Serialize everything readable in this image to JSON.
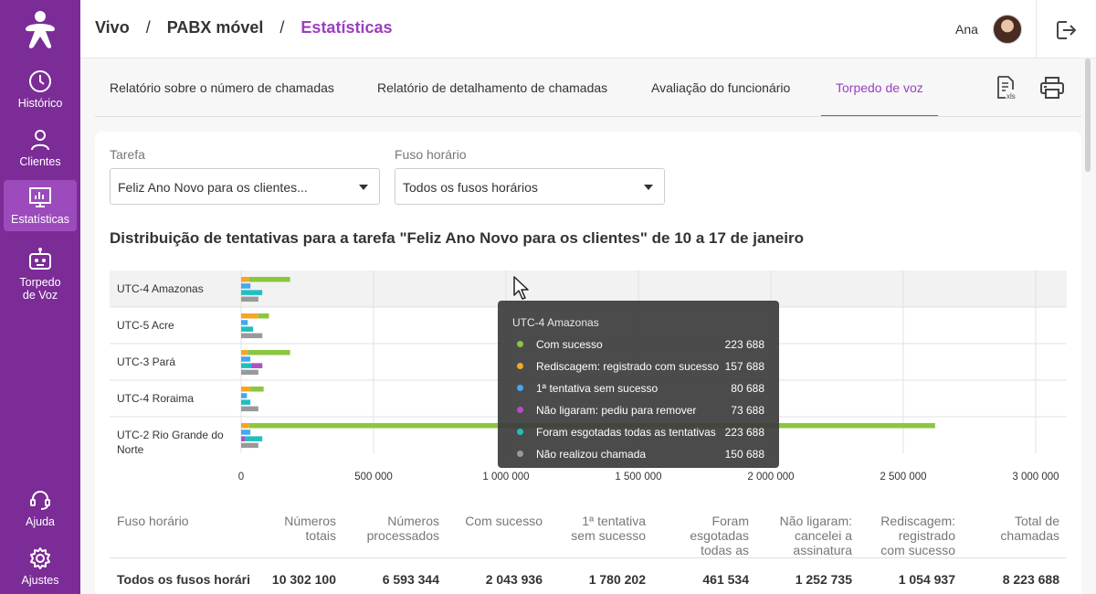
{
  "sidebar": {
    "logo": "vivo-logo-icon",
    "items": [
      {
        "label": "Histórico",
        "icon": "clock-icon",
        "active": false
      },
      {
        "label": "Clientes",
        "icon": "user-icon",
        "active": false
      },
      {
        "label": "Estatísticas",
        "icon": "chart-icon",
        "active": true
      },
      {
        "label": "Torpedo\nde Voz",
        "label_line1": "Torpedo",
        "label_line2": "de Voz",
        "icon": "robot-icon",
        "active": false
      }
    ],
    "bottom_items": [
      {
        "label": "Ajuda",
        "icon": "headset-icon"
      },
      {
        "label": "Ajustes",
        "icon": "gear-icon"
      }
    ]
  },
  "header": {
    "breadcrumb": [
      "Vivo",
      "PABX móvel",
      "Estatísticas"
    ],
    "separator": "/",
    "user_name": "Ana"
  },
  "tabs": [
    {
      "label": "Relatório sobre o número de chamadas",
      "active": false
    },
    {
      "label": "Relatório de detalhamento de chamadas",
      "active": false
    },
    {
      "label": "Avaliação do funcionário",
      "active": false
    },
    {
      "label": "Torpedo de voz",
      "active": true
    }
  ],
  "filters": {
    "task_label": "Tarefa",
    "task_value": "Feliz Ano Novo para os clientes...",
    "tz_label": "Fuso horário",
    "tz_value": "Todos os fusos horários"
  },
  "section_title": "Distribuição de tentativas para a tarefa \"Feliz Ano Novo para os clientes\" de 10 a 17 de janeiro",
  "colors": {
    "success": "#8cc63f",
    "redial": "#f5a623",
    "first_fail": "#3fa9f5",
    "removed": "#b24fc8",
    "exhausted": "#1fbfbf",
    "not_called": "#999999",
    "accent": "#9b3fc0",
    "sidebar": "#7b2c96"
  },
  "chart_data": {
    "type": "bar",
    "orientation": "horizontal",
    "categories": [
      "UTC-4 Amazonas",
      "UTC-5 Acre",
      "UTC-3 Pará",
      "UTC-4 Roraima",
      "UTC-2 Rio Grande do Norte"
    ],
    "xlim": [
      0,
      3000000
    ],
    "xticks": [
      0,
      500000,
      1000000,
      1500000,
      2000000,
      2500000,
      3000000
    ],
    "xtick_labels": [
      "0",
      "500 000",
      "1 000 000",
      "1 500 000",
      "2 000 000",
      "2 500 000",
      "3 000 000"
    ],
    "grid": true,
    "series": [
      {
        "key": "success",
        "values": [
          185000,
          105000,
          185000,
          35000,
          2620000
        ]
      },
      {
        "key": "redial",
        "values": [
          30000,
          65000,
          25000,
          85000,
          30000
        ]
      },
      {
        "key": "first_fail",
        "values": [
          35000,
          25000,
          35000,
          22000,
          35000
        ]
      },
      {
        "key": "removed",
        "values": [
          0,
          0,
          0,
          0,
          0
        ]
      },
      {
        "key": "exhausted",
        "values": [
          80000,
          45000,
          35000,
          35000,
          20000
        ]
      },
      {
        "key": "removed2",
        "values": [
          0,
          0,
          0,
          0,
          0
        ]
      },
      {
        "key": "not_called",
        "values": [
          65000,
          80000,
          65000,
          65000,
          65000
        ]
      }
    ],
    "bars": [
      [
        185000,
        30000,
        35000,
        80000,
        65000
      ],
      [
        105000,
        65000,
        25000,
        45000,
        80000
      ],
      [
        185000,
        25000,
        35000,
        80000,
        65000
      ],
      [
        85000,
        35000,
        22000,
        35000,
        65000
      ],
      [
        2620000,
        30000,
        35000,
        80000,
        65000
      ]
    ]
  },
  "tooltip": {
    "title": "UTC-4 Amazonas",
    "rows": [
      {
        "label": "Com sucesso",
        "value": "223 688",
        "color": "#8cc63f"
      },
      {
        "label": "Rediscagem: registrado com sucesso",
        "value": "157 688",
        "color": "#f5a623"
      },
      {
        "label": "1ª tentativa sem sucesso",
        "value": "80 688",
        "color": "#3fa9f5"
      },
      {
        "label": "Não ligaram: pediu para remover",
        "value": "73 688",
        "color": "#b24fc8"
      },
      {
        "label": "Foram esgotadas todas as tentativas",
        "value": "223 688",
        "color": "#1fbfbf"
      },
      {
        "label": "Não realizou chamada",
        "value": "150 688",
        "color": "#999999"
      }
    ]
  },
  "table": {
    "headers": [
      "Fuso horário",
      "Números\ntotais",
      "Números\nprocessados",
      "Com sucesso",
      "1ª tentativa\nsem sucesso",
      "Foram\nesgotadas\ntodas as",
      "Não ligaram:\ncancelei a\nassinatura",
      "Rediscagem:\nregistrado\ncom sucesso",
      "Total de\nchamadas"
    ],
    "rows": [
      [
        "Todos os fusos horári",
        "10 302 100",
        "6 593 344",
        "2 043 936",
        "1 780 202",
        "461 534",
        "1 252 735",
        "1 054 937",
        "8 223 688"
      ]
    ]
  }
}
